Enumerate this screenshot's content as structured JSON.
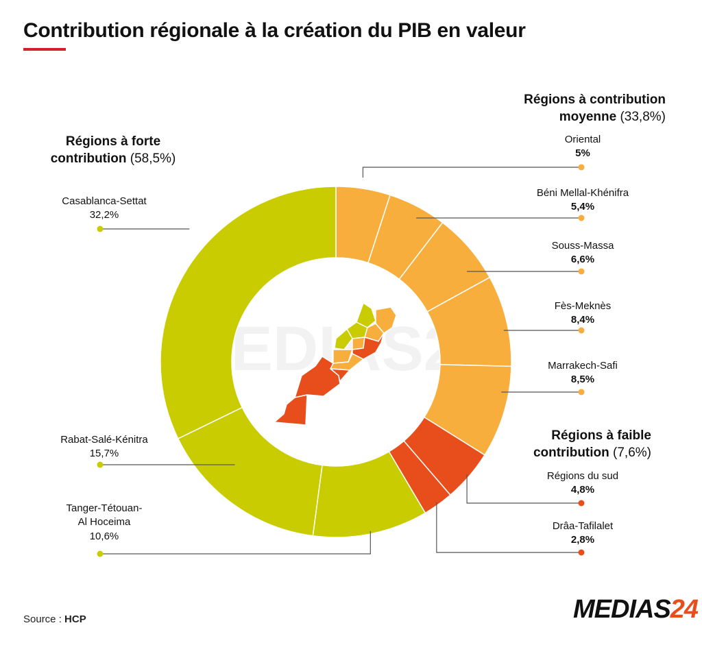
{
  "title": "Contribution régionale à la création du PIB en valeur",
  "groups": {
    "strong": {
      "title_line1": "Régions à forte",
      "title_line2": "contribution",
      "pct": "(58,5%)"
    },
    "medium": {
      "title_line1": "Régions à contribution",
      "title_line2": "moyenne",
      "pct": "(33,8%)"
    },
    "weak": {
      "title_line1": "Régions à faible",
      "title_line2": "contribution",
      "pct": "(7,6%)"
    }
  },
  "labels": {
    "casablanca": {
      "name": "Casablanca-Settat",
      "value": "32,2%"
    },
    "rabat": {
      "name": "Rabat-Salé-Kénitra",
      "value": "15,7%"
    },
    "tanger": {
      "name1": "Tanger-Tétouan-",
      "name2": "Al Hoceima",
      "value": "10,6%"
    },
    "oriental": {
      "name": "Oriental",
      "value": "5%"
    },
    "beni": {
      "name": "Béni Mellal-Khénifra",
      "value": "5,4%"
    },
    "souss": {
      "name": "Souss-Massa",
      "value": "6,6%"
    },
    "fes": {
      "name": "Fès-Meknès",
      "value": "8,4%"
    },
    "marrakech": {
      "name": "Marrakech-Safi",
      "value": "8,5%"
    },
    "sud": {
      "name": "Régions du sud",
      "value": "4,8%"
    },
    "draa": {
      "name": "Drâa-Tafilalet",
      "value": "2,8%"
    }
  },
  "source": {
    "label": "Source :",
    "value": "HCP"
  },
  "logo": {
    "text": "MEDIAS",
    "number": "24"
  },
  "watermark": "MEDIAS24",
  "colors": {
    "strong": "#c8cc00",
    "medium": "#f8ae3c",
    "weak": "#e84e1b",
    "title_accent": "#d6202a"
  },
  "chart_data": {
    "type": "pie",
    "variant": "donut",
    "title": "Contribution régionale à la création du PIB en valeur",
    "slices": [
      {
        "label": "Oriental",
        "value": 5.0,
        "group": "medium"
      },
      {
        "label": "Béni Mellal-Khénifra",
        "value": 5.4,
        "group": "medium"
      },
      {
        "label": "Souss-Massa",
        "value": 6.6,
        "group": "medium"
      },
      {
        "label": "Fès-Meknès",
        "value": 8.4,
        "group": "medium"
      },
      {
        "label": "Marrakech-Safi",
        "value": 8.5,
        "group": "medium"
      },
      {
        "label": "Régions du sud",
        "value": 4.8,
        "group": "weak"
      },
      {
        "label": "Drâa-Tafilalet",
        "value": 2.8,
        "group": "weak"
      },
      {
        "label": "Tanger-Tétouan-Al Hoceima",
        "value": 10.6,
        "group": "strong"
      },
      {
        "label": "Rabat-Salé-Kénitra",
        "value": 15.7,
        "group": "strong"
      },
      {
        "label": "Casablanca-Settat",
        "value": 32.2,
        "group": "strong"
      }
    ],
    "groups": [
      {
        "name": "Régions à forte contribution",
        "value": 58.5
      },
      {
        "name": "Régions à contribution moyenne",
        "value": 33.8
      },
      {
        "name": "Régions à faible contribution",
        "value": 7.6
      }
    ]
  }
}
